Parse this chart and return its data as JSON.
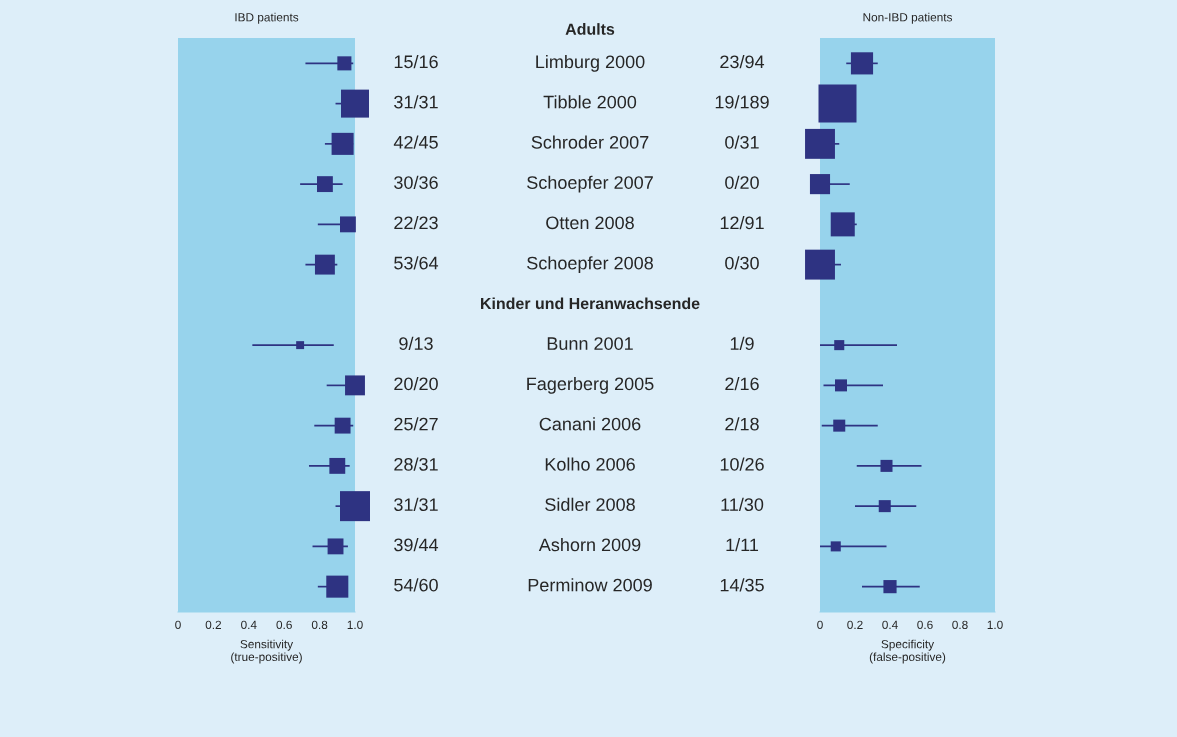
{
  "chart_data": [
    {
      "type": "bubble",
      "title": "IBD patients",
      "xlabel": "Sensitivity\n(true-positive)",
      "orientation": "horizontal",
      "marker": "square",
      "tick_labels": "x",
      "annotations": [
        "Adults",
        "Kinder und Heranwachsende"
      ],
      "categories": [
        "15/16",
        "31/31",
        "42/45",
        "30/36",
        "22/23",
        "53/64",
        null,
        "9/13",
        "20/20",
        "25/27",
        "28/31",
        "31/31",
        "39/44",
        "54/60"
      ],
      "xlim": [
        0,
        1
      ],
      "xticks": [
        0,
        0.2,
        0.4,
        0.6,
        0.8,
        {
          "value": 1,
          "label": "1.0"
        }
      ],
      "series": [
        {
          "color": "#2e3382",
          "values": [
            0.94,
            1.0,
            0.93,
            0.83,
            0.96,
            0.83,
            null,
            0.69,
            1.0,
            0.93,
            0.9,
            1.0,
            0.89,
            0.9
          ],
          "errors": [
            [
              0.72,
              0.99
            ],
            [
              0.89,
              1.0
            ],
            [
              0.83,
              0.99
            ],
            [
              0.69,
              0.93
            ],
            [
              0.79,
              1.0
            ],
            [
              0.72,
              0.9
            ],
            null,
            [
              0.42,
              0.88
            ],
            [
              0.84,
              1.0
            ],
            [
              0.77,
              0.99
            ],
            [
              0.74,
              0.97
            ],
            [
              0.89,
              1.0
            ],
            [
              0.76,
              0.96
            ],
            [
              0.79,
              0.96
            ]
          ],
          "sizes": [
            0.22,
            0.87,
            0.54,
            0.28,
            0.28,
            0.44,
            null,
            0.07,
            0.44,
            0.28,
            0.28,
            1.0,
            0.28,
            0.54
          ]
        }
      ]
    },
    {
      "type": "bubble",
      "title": "Non-IBD patients",
      "xlabel": "Specificity\n(false-positive)",
      "orientation": "horizontal",
      "marker": "square",
      "annotations": [
        "23/94",
        "19/189",
        "0/31",
        "0/20",
        "12/91",
        "0/30",
        "1/9",
        "2/16",
        "2/18",
        "10/26",
        "11/30",
        "1/11",
        "14/35"
      ],
      "categories": [
        "Limburg 2000",
        "Tibble 2000",
        "Schroder 2007",
        "Schoepfer 2007",
        "Otten 2008",
        "Schoepfer 2008",
        null,
        "Bunn 2001",
        "Fagerberg 2005",
        "Canani 2006",
        "Kolho 2006",
        "Sidler 2008",
        "Ashorn 2009",
        "Perminow 2009"
      ],
      "tick_labels": "x",
      "xlim": [
        0,
        1
      ],
      "xticks": [
        0,
        0.2,
        0.4,
        0.6,
        0.8,
        {
          "value": 1,
          "label": "1.0"
        }
      ],
      "series": [
        {
          "color": "#2e3382",
          "values": [
            0.24,
            0.1,
            0.0,
            0.0,
            0.13,
            0.0,
            null,
            0.11,
            0.12,
            0.11,
            0.38,
            0.37,
            0.09,
            0.4
          ],
          "errors": [
            [
              0.15,
              0.33
            ],
            null,
            [
              0.0,
              0.11
            ],
            [
              0.0,
              0.17
            ],
            [
              0.07,
              0.21
            ],
            [
              0.0,
              0.12
            ],
            null,
            [
              0.0,
              0.44
            ],
            [
              0.02,
              0.36
            ],
            [
              0.01,
              0.33
            ],
            [
              0.21,
              0.58
            ],
            [
              0.2,
              0.55
            ],
            [
              0.0,
              0.38
            ],
            [
              0.24,
              0.57
            ]
          ],
          "sizes": [
            0.34,
            1.0,
            0.62,
            0.28,
            0.4,
            0.62,
            null,
            0.07,
            0.1,
            0.1,
            0.1,
            0.1,
            0.07,
            0.12
          ]
        }
      ]
    }
  ]
}
